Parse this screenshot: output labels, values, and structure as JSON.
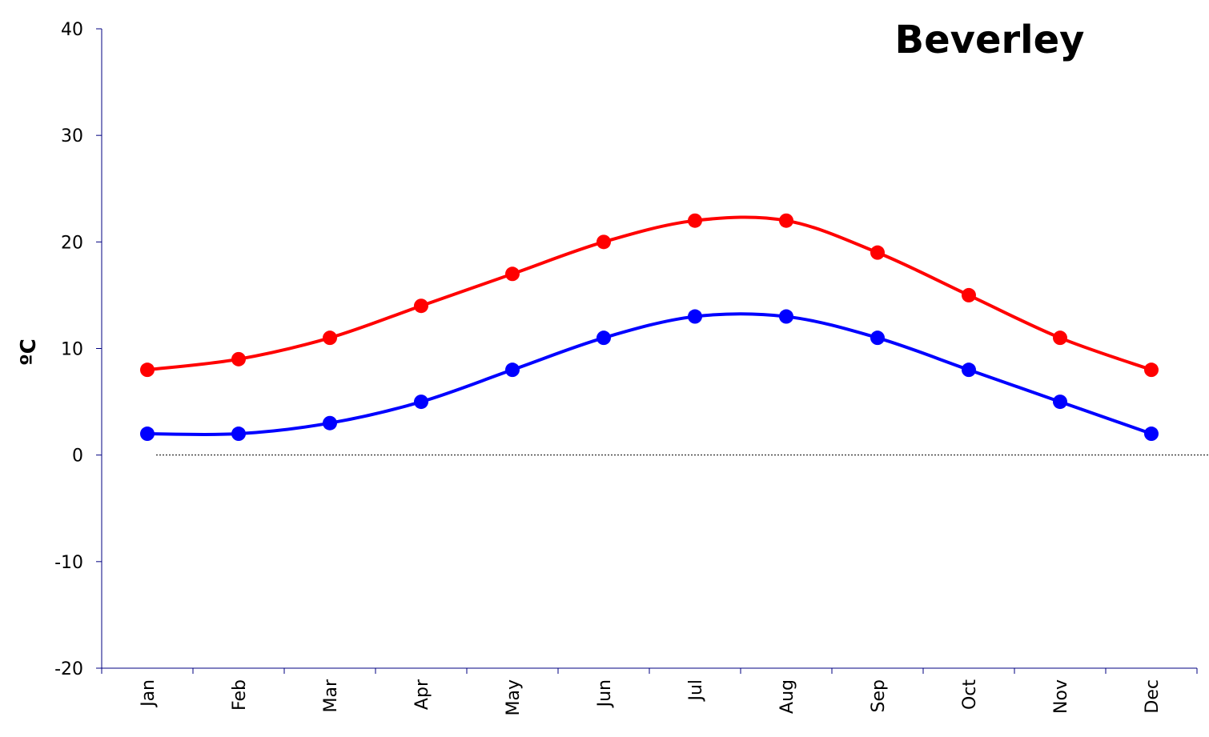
{
  "chart_data": {
    "type": "line",
    "title": "Beverley",
    "xlabel": "",
    "ylabel": "ºC",
    "categories": [
      "Jan",
      "Feb",
      "Mar",
      "Apr",
      "May",
      "Jun",
      "Jul",
      "Aug",
      "Sep",
      "Oct",
      "Nov",
      "Dec"
    ],
    "ylim": [
      -20,
      40
    ],
    "yticks": [
      "40",
      "30",
      "20",
      "10",
      "0",
      "-10",
      "-20"
    ],
    "series": [
      {
        "color": "#ff0000",
        "values": [
          8,
          9,
          11,
          14,
          17,
          20,
          22,
          22,
          19,
          15,
          11,
          8
        ]
      },
      {
        "color": "#0000ff",
        "values": [
          2,
          2,
          3,
          5,
          8,
          11,
          13,
          13,
          11,
          8,
          5,
          2
        ]
      }
    ],
    "reference_line": 0,
    "smooth": true,
    "grid": false,
    "legend": "none"
  }
}
